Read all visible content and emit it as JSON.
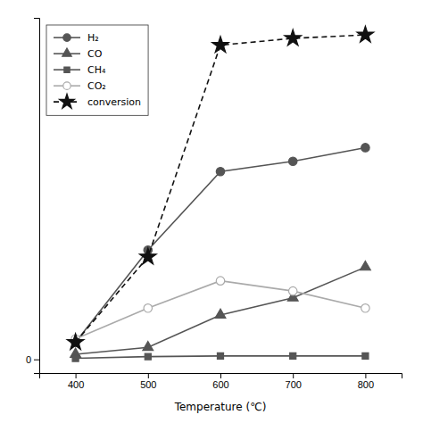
{
  "chart_data": {
    "type": "line",
    "xlabel": "Temperature (℃)",
    "x": [
      400,
      500,
      600,
      700,
      800
    ],
    "xlim": [
      350,
      850
    ],
    "xticks": [
      400,
      500,
      600,
      700,
      800
    ],
    "ylim": [
      -4,
      100
    ],
    "yticks": [
      0
    ],
    "legend": "upper left",
    "series": [
      {
        "name": "H₂",
        "color": "#555555",
        "marker": "circle",
        "line_style": "solid",
        "values": [
          5.0,
          32.0,
          55.0,
          58.0,
          62.0
        ]
      },
      {
        "name": "CO",
        "color": "#555555",
        "marker": "triangle",
        "line_style": "solid",
        "values": [
          1.5,
          3.5,
          13.0,
          18.0,
          27.0
        ]
      },
      {
        "name": "CH₄",
        "color": "#555555",
        "marker": "square",
        "line_style": "solid",
        "values": [
          0.3,
          0.8,
          1.0,
          1.0,
          1.0
        ]
      },
      {
        "name": "CO₂",
        "color": "#aaaaaa",
        "marker": "open-circle",
        "line_style": "solid",
        "values": [
          6.0,
          15.0,
          23.0,
          20.0,
          15.0
        ]
      },
      {
        "name": "conversion",
        "color": "#111111",
        "marker": "star",
        "line_style": "dashed",
        "values": [
          5.0,
          30.0,
          92.0,
          94.0,
          95.0
        ]
      }
    ]
  }
}
